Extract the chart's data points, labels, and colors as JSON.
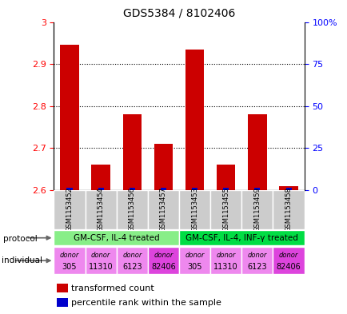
{
  "title": "GDS5384 / 8102406",
  "samples": [
    "GSM1153452",
    "GSM1153454",
    "GSM1153456",
    "GSM1153457",
    "GSM1153453",
    "GSM1153455",
    "GSM1153459",
    "GSM1153458"
  ],
  "red_values": [
    2.945,
    2.66,
    2.78,
    2.71,
    2.935,
    2.66,
    2.78,
    2.61
  ],
  "blue_heights": [
    0.006,
    0.006,
    0.006,
    0.006,
    0.006,
    0.006,
    0.006,
    0.006
  ],
  "ylim_left": [
    2.6,
    3.0
  ],
  "ylim_right": [
    0,
    100
  ],
  "right_ticks": [
    0,
    25,
    50,
    75,
    100
  ],
  "right_tick_labels": [
    "0",
    "25",
    "50",
    "75",
    "100%"
  ],
  "left_ticks": [
    2.6,
    2.7,
    2.8,
    2.9,
    3.0
  ],
  "ytick_labels_left": [
    "2.6",
    "2.7",
    "2.8",
    "2.9",
    "3"
  ],
  "dotted_lines": [
    2.7,
    2.8,
    2.9
  ],
  "protocol_labels": [
    "GM-CSF, IL-4 treated",
    "GM-CSF, IL-4, INF-γ treated"
  ],
  "protocol_colors": [
    "#88ee88",
    "#00dd44"
  ],
  "individual_labels": [
    "donor\n305",
    "donor\n11310",
    "donor\n6123",
    "donor\n82406",
    "donor\n305",
    "donor\n11310",
    "donor\n6123",
    "donor\n82406"
  ],
  "individual_colors": [
    "#ee88ee",
    "#ee88ee",
    "#ee88ee",
    "#dd44dd",
    "#ee88ee",
    "#ee88ee",
    "#ee88ee",
    "#dd44dd"
  ],
  "bar_color_red": "#cc0000",
  "bar_color_blue": "#0000cc",
  "sample_box_color": "#cccccc",
  "title_fontsize": 10,
  "tick_fontsize": 8,
  "small_fontsize": 7,
  "legend_fontsize": 8
}
